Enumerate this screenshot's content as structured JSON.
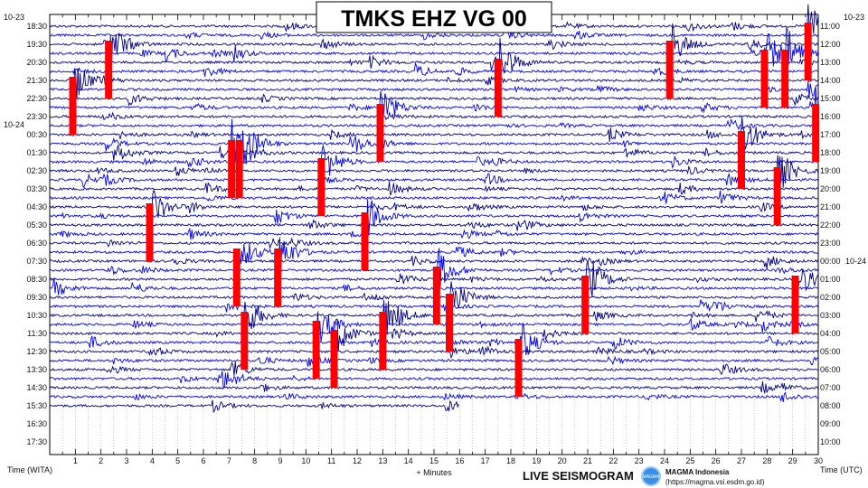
{
  "chart_data": {
    "type": "line",
    "title": "TMKS EHZ VG 00",
    "xlabel": "+ Minutes",
    "left_axis_label": "Time (WITA)",
    "right_axis_label": "Time (UTC)",
    "xlim": [
      0,
      30
    ],
    "x_ticks": [
      "1",
      "2",
      "3",
      "4",
      "5",
      "6",
      "7",
      "8",
      "9",
      "10",
      "11",
      "12",
      "13",
      "14",
      "15",
      "16",
      "17",
      "18",
      "19",
      "20",
      "21",
      "22",
      "23",
      "24",
      "25",
      "26",
      "27",
      "28",
      "29",
      "30"
    ],
    "left_date_labels": [
      {
        "text": "10-23",
        "hour_index": 0
      },
      {
        "text": "10-24",
        "hour_index": 6
      }
    ],
    "left_time_labels": [
      "18:30",
      "19:30",
      "20:30",
      "21:30",
      "22:30",
      "23:30",
      "00:30",
      "01:30",
      "02:30",
      "03:30",
      "04:30",
      "05:30",
      "06:30",
      "07:30",
      "08:30",
      "09:30",
      "10:30",
      "11:30",
      "12:30",
      "13:30",
      "14:30",
      "15:30",
      "16:30",
      "17:30"
    ],
    "right_date_labels": [
      {
        "text": "10-23",
        "hour_index": 0
      },
      {
        "text": "10-24",
        "hour_index": 13
      }
    ],
    "right_time_labels": [
      "11:00",
      "12:00",
      "13:00",
      "14:00",
      "15:00",
      "16:00",
      "17:00",
      "18:00",
      "19:00",
      "20:00",
      "21:00",
      "22:00",
      "23:00",
      "00:00",
      "01:00",
      "02:00",
      "03:00",
      "04:00",
      "05:00",
      "06:00",
      "07:00",
      "08:00",
      "09:00",
      "10:00"
    ],
    "minutes_per_trace": 30,
    "traces_recorded": 43,
    "last_trace_end_minute": 16,
    "events_clipped": [
      {
        "trace": 6,
        "minute": 0.9
      },
      {
        "trace": 2,
        "minute": 2.3
      },
      {
        "trace": 13,
        "minute": 7.1
      },
      {
        "trace": 13,
        "minute": 7.4
      },
      {
        "trace": 15,
        "minute": 10.6
      },
      {
        "trace": 9,
        "minute": 12.9
      },
      {
        "trace": 4,
        "minute": 17.5
      },
      {
        "trace": 2,
        "minute": 24.2
      },
      {
        "trace": 3,
        "minute": 27.9
      },
      {
        "trace": 3,
        "minute": 28.7
      },
      {
        "trace": 0,
        "minute": 29.6
      },
      {
        "trace": 12,
        "minute": 27.0
      },
      {
        "trace": 16,
        "minute": 28.4
      },
      {
        "trace": 9,
        "minute": 29.9
      },
      {
        "trace": 20,
        "minute": 3.9
      },
      {
        "trace": 25,
        "minute": 7.3
      },
      {
        "trace": 25,
        "minute": 8.9
      },
      {
        "trace": 21,
        "minute": 12.3
      },
      {
        "trace": 27,
        "minute": 15.1
      },
      {
        "trace": 30,
        "minute": 15.6
      },
      {
        "trace": 33,
        "minute": 10.4
      },
      {
        "trace": 34,
        "minute": 11.1
      },
      {
        "trace": 32,
        "minute": 13.0
      },
      {
        "trace": 32,
        "minute": 7.6
      },
      {
        "trace": 35,
        "minute": 18.3
      },
      {
        "trace": 28,
        "minute": 20.9
      },
      {
        "trace": 28,
        "minute": 29.1
      }
    ]
  },
  "footer": {
    "brand": "LIVE SEISMOGRAM",
    "org": "MAGMA Indonesia",
    "url": "(https://magma.vsi.esdm.go.id)",
    "logo_text": "MAGMA"
  },
  "colors": {
    "trace_a": "#000080",
    "trace_b": "#0000ee",
    "clip": "#ff0000"
  }
}
